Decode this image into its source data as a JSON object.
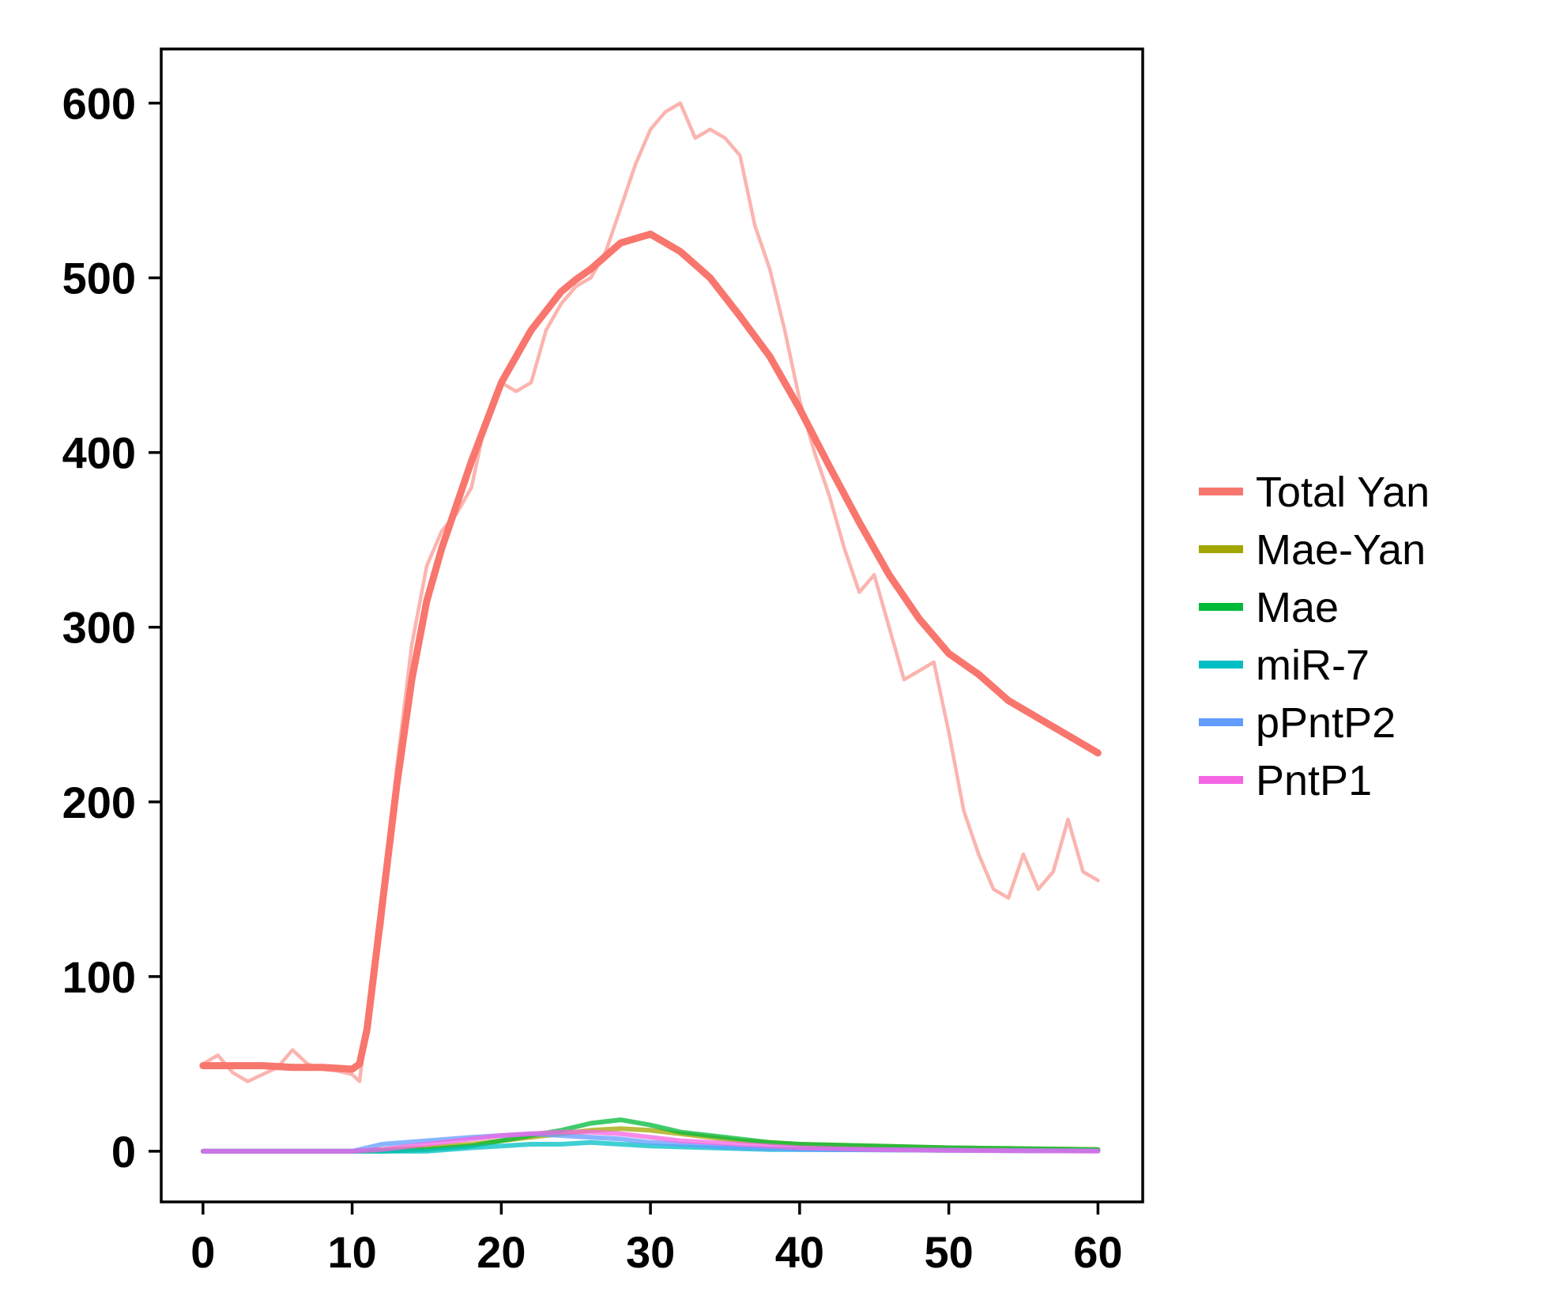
{
  "chart_data": {
    "type": "line",
    "title": "",
    "xlabel": "",
    "ylabel": "",
    "xlim": [
      -2.8,
      63
    ],
    "ylim": [
      -29,
      631
    ],
    "x_ticks": [
      0,
      10,
      20,
      30,
      40,
      50,
      60
    ],
    "y_ticks": [
      0,
      100,
      200,
      300,
      400,
      500,
      600
    ],
    "x_tick_labels": [
      "0",
      "10",
      "20",
      "30",
      "40",
      "50",
      "60"
    ],
    "y_tick_labels": [
      "0",
      "100",
      "200",
      "300",
      "400",
      "500",
      "600"
    ],
    "grid": false,
    "legend_position": "right",
    "series": [
      {
        "name": "Total Yan",
        "color": "#F8766D",
        "style": "mean",
        "x": [
          0,
          2,
          4,
          6,
          8,
          10,
          10.5,
          11,
          12,
          13,
          14,
          15,
          16,
          18,
          20,
          22,
          24,
          25,
          26,
          28,
          30,
          32,
          34,
          36,
          38,
          40,
          42,
          44,
          46,
          48,
          50,
          52,
          54,
          56,
          58,
          60
        ],
        "values": [
          49,
          49,
          49,
          48,
          48,
          47,
          50,
          70,
          140,
          210,
          270,
          315,
          345,
          395,
          440,
          470,
          492,
          499,
          505,
          520,
          525,
          515,
          500,
          478,
          455,
          425,
          392,
          360,
          330,
          305,
          285,
          273,
          258,
          248,
          238,
          228
        ]
      },
      {
        "name": "Total Yan",
        "color": "#F8766D",
        "style": "trajectory",
        "x": [
          0,
          1,
          2,
          3,
          4,
          5,
          6,
          7,
          8,
          9,
          10,
          10.5,
          11,
          12,
          13,
          14,
          15,
          16,
          17,
          18,
          19,
          20,
          21,
          22,
          23,
          24,
          25,
          26,
          27,
          28,
          29,
          30,
          31,
          32,
          33,
          34,
          35,
          36,
          37,
          38,
          39,
          40,
          41,
          42,
          43,
          44,
          45,
          46,
          47,
          48,
          49,
          50,
          51,
          52,
          53,
          54,
          55,
          56,
          57,
          58,
          59,
          60
        ],
        "values": [
          50,
          55,
          45,
          40,
          44,
          48,
          58,
          50,
          47,
          46,
          44,
          40,
          75,
          130,
          220,
          290,
          335,
          355,
          365,
          380,
          420,
          440,
          435,
          440,
          470,
          485,
          495,
          500,
          515,
          540,
          565,
          585,
          595,
          600,
          580,
          585,
          580,
          570,
          530,
          505,
          470,
          430,
          400,
          375,
          345,
          320,
          330,
          300,
          270,
          275,
          280,
          240,
          195,
          170,
          150,
          145,
          170,
          150,
          160,
          190,
          160,
          155
        ]
      },
      {
        "name": "Mae-Yan",
        "color": "#A3A500",
        "x": [
          0,
          10,
          12,
          15,
          18,
          20,
          22,
          24,
          26,
          28,
          30,
          32,
          34,
          36,
          38,
          40,
          45,
          50,
          55,
          60
        ],
        "values": [
          0,
          0,
          1,
          2,
          4,
          6,
          8,
          10,
          12,
          13,
          12,
          10,
          8,
          6,
          5,
          4,
          3,
          2,
          1.5,
          1
        ]
      },
      {
        "name": "Mae",
        "color": "#00BA38",
        "x": [
          0,
          10,
          12,
          15,
          18,
          20,
          22,
          24,
          26,
          28,
          30,
          32,
          34,
          36,
          38,
          40,
          45,
          50,
          55,
          60
        ],
        "values": [
          0,
          0,
          0,
          1,
          3,
          6,
          9,
          12,
          16,
          18,
          15,
          11,
          9,
          7,
          5,
          4,
          3,
          2,
          1.5,
          1
        ]
      },
      {
        "name": "miR-7",
        "color": "#00BFC4",
        "x": [
          0,
          10,
          12,
          15,
          18,
          20,
          22,
          24,
          26,
          28,
          30,
          32,
          34,
          36,
          38,
          40,
          45,
          50,
          55,
          60
        ],
        "values": [
          0,
          0,
          0,
          0,
          2,
          3,
          4,
          4,
          5,
          4,
          3,
          2.5,
          2,
          1.5,
          1,
          1,
          0.8,
          0.5,
          0.3,
          0.2
        ]
      },
      {
        "name": "pPntP2",
        "color": "#619CFF",
        "x": [
          0,
          10,
          12,
          15,
          18,
          20,
          22,
          24,
          26,
          28,
          30,
          32,
          34,
          36,
          38,
          40,
          45,
          50,
          55,
          60
        ],
        "values": [
          0,
          0,
          4,
          6,
          8,
          9,
          10,
          9,
          8,
          7,
          5,
          4,
          3,
          2,
          1.5,
          1,
          0.8,
          0.5,
          0.3,
          0.2
        ]
      },
      {
        "name": "PntP1",
        "color": "#F564E3",
        "x": [
          0,
          10,
          12,
          15,
          18,
          20,
          22,
          24,
          26,
          28,
          30,
          32,
          34,
          36,
          38,
          40,
          45,
          50,
          55,
          60
        ],
        "values": [
          0,
          0,
          1,
          4,
          7,
          9,
          10,
          11,
          11,
          10,
          8,
          6,
          5,
          4,
          3,
          2,
          1,
          0.5,
          0.3,
          0.1
        ]
      }
    ],
    "legend": [
      {
        "label": "Total Yan",
        "color": "#F8766D"
      },
      {
        "label": "Mae-Yan",
        "color": "#A3A500"
      },
      {
        "label": "Mae",
        "color": "#00BA38"
      },
      {
        "label": "miR-7",
        "color": "#00BFC4"
      },
      {
        "label": "pPntP2",
        "color": "#619CFF"
      },
      {
        "label": "PntP1",
        "color": "#F564E3"
      }
    ]
  }
}
